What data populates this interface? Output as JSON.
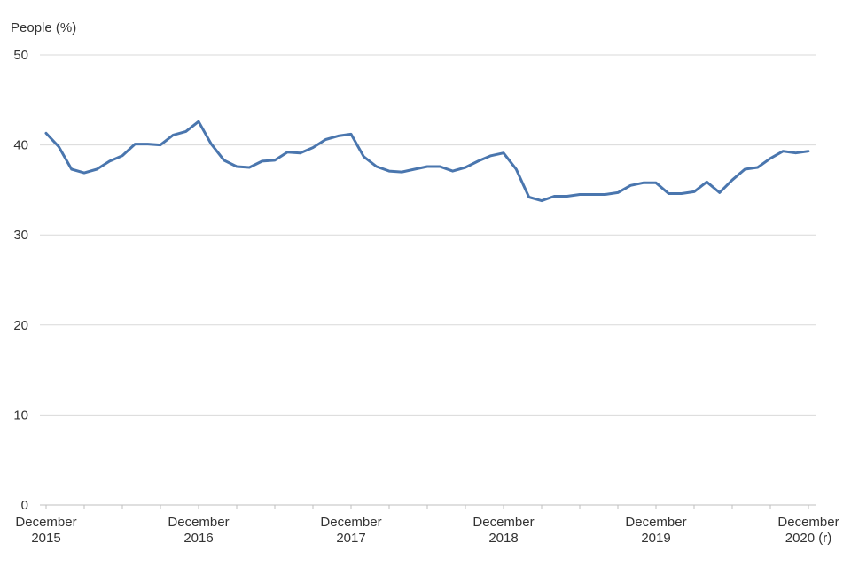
{
  "chart_data": {
    "type": "line",
    "title": "",
    "ylabel": "People (%)",
    "xlabel": "",
    "ylim": [
      0,
      50
    ],
    "yticks": [
      0,
      10,
      20,
      30,
      40,
      50
    ],
    "grid": true,
    "x_tick_labels": [
      {
        "index": 0,
        "line1": "December",
        "line2": "2015"
      },
      {
        "index": 12,
        "line1": "December",
        "line2": "2016"
      },
      {
        "index": 24,
        "line1": "December",
        "line2": "2017"
      },
      {
        "index": 36,
        "line1": "December",
        "line2": "2018"
      },
      {
        "index": 48,
        "line1": "December",
        "line2": "2019"
      },
      {
        "index": 60,
        "line1": "December",
        "line2": "2020 (r)"
      }
    ],
    "series": [
      {
        "color": "#4a76ae",
        "values": [
          41.3,
          39.8,
          37.3,
          36.9,
          37.3,
          38.2,
          38.8,
          40.1,
          40.1,
          40.0,
          41.1,
          41.5,
          42.6,
          40.1,
          38.3,
          37.6,
          37.5,
          38.2,
          38.3,
          39.2,
          39.1,
          39.7,
          40.6,
          41.0,
          41.2,
          38.7,
          37.6,
          37.1,
          37.0,
          37.3,
          37.6,
          37.6,
          37.1,
          37.5,
          38.2,
          38.8,
          39.1,
          37.3,
          34.2,
          33.8,
          34.3,
          34.3,
          34.5,
          34.5,
          34.5,
          34.7,
          35.5,
          35.8,
          35.8,
          34.6,
          34.6,
          34.8,
          35.9,
          34.7,
          36.1,
          37.3,
          37.5,
          38.5,
          39.3,
          39.1,
          39.3
        ]
      }
    ]
  }
}
